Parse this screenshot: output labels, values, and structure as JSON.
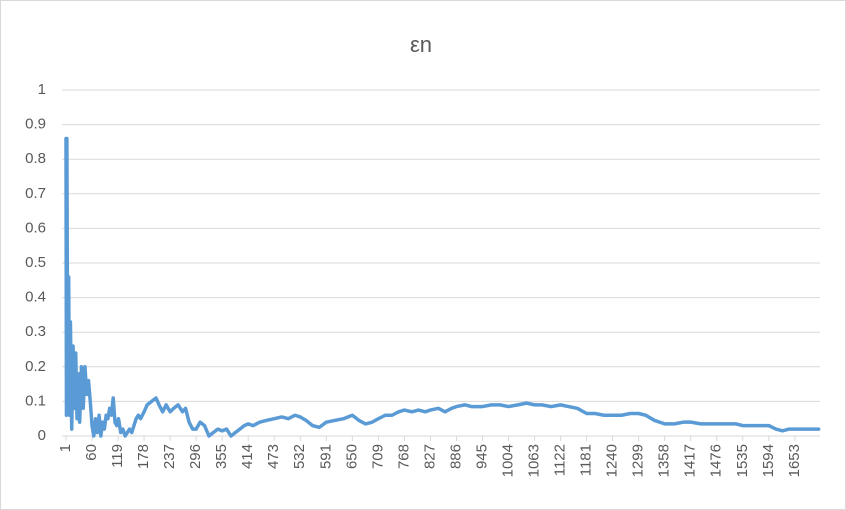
{
  "chart_data": {
    "type": "line",
    "title": "εn",
    "color": "#5b9bd5",
    "grid": true,
    "x": [
      1,
      2,
      3,
      5,
      7,
      9,
      11,
      14,
      17,
      20,
      23,
      26,
      29,
      32,
      36,
      40,
      44,
      48,
      52,
      56,
      60,
      64,
      68,
      72,
      76,
      80,
      84,
      88,
      92,
      96,
      100,
      104,
      108,
      112,
      116,
      120,
      125,
      130,
      135,
      140,
      145,
      150,
      155,
      160,
      165,
      170,
      178,
      185,
      195,
      205,
      212,
      220,
      228,
      237,
      245,
      255,
      265,
      272,
      280,
      288,
      296,
      305,
      315,
      325,
      335,
      345,
      355,
      365,
      375,
      385,
      395,
      405,
      414,
      425,
      440,
      455,
      473,
      490,
      505,
      520,
      532,
      545,
      560,
      575,
      591,
      610,
      630,
      650,
      665,
      680,
      695,
      709,
      725,
      740,
      755,
      768,
      785,
      800,
      815,
      827,
      845,
      860,
      875,
      886,
      905,
      920,
      945,
      965,
      985,
      1004,
      1025,
      1045,
      1063,
      1080,
      1100,
      1122,
      1140,
      1160,
      1181,
      1200,
      1220,
      1240,
      1260,
      1280,
      1299,
      1315,
      1335,
      1358,
      1380,
      1400,
      1417,
      1440,
      1460,
      1476,
      1500,
      1520,
      1535,
      1560,
      1580,
      1594,
      1610,
      1625,
      1640,
      1653,
      1670,
      1690,
      1707
    ],
    "values": [
      0.86,
      0.06,
      0.86,
      0.1,
      0.46,
      0.06,
      0.33,
      0.02,
      0.26,
      0.08,
      0.24,
      0.05,
      0.18,
      0.04,
      0.2,
      0.08,
      0.2,
      0.12,
      0.16,
      0.1,
      0.03,
      0.0,
      0.05,
      0.01,
      0.06,
      0.0,
      0.04,
      0.02,
      0.06,
      0.05,
      0.08,
      0.06,
      0.11,
      0.04,
      0.03,
      0.05,
      0.01,
      0.02,
      0.0,
      0.01,
      0.02,
      0.01,
      0.03,
      0.05,
      0.06,
      0.05,
      0.07,
      0.09,
      0.1,
      0.11,
      0.09,
      0.07,
      0.09,
      0.07,
      0.08,
      0.09,
      0.07,
      0.08,
      0.04,
      0.02,
      0.02,
      0.04,
      0.03,
      0.0,
      0.01,
      0.02,
      0.015,
      0.02,
      0.0,
      0.01,
      0.02,
      0.03,
      0.035,
      0.03,
      0.04,
      0.045,
      0.05,
      0.055,
      0.05,
      0.06,
      0.055,
      0.045,
      0.03,
      0.025,
      0.04,
      0.045,
      0.05,
      0.06,
      0.045,
      0.035,
      0.04,
      0.05,
      0.06,
      0.06,
      0.07,
      0.075,
      0.07,
      0.075,
      0.07,
      0.075,
      0.08,
      0.07,
      0.08,
      0.085,
      0.09,
      0.085,
      0.085,
      0.09,
      0.09,
      0.085,
      0.09,
      0.095,
      0.09,
      0.09,
      0.085,
      0.09,
      0.085,
      0.08,
      0.065,
      0.065,
      0.06,
      0.06,
      0.06,
      0.065,
      0.065,
      0.06,
      0.045,
      0.035,
      0.035,
      0.04,
      0.04,
      0.035,
      0.035,
      0.035,
      0.035,
      0.035,
      0.03,
      0.03,
      0.03,
      0.03,
      0.02,
      0.015,
      0.02,
      0.02,
      0.02,
      0.02,
      0.02
    ],
    "xlim": [
      1,
      1710
    ],
    "xticks": [
      1,
      60,
      119,
      178,
      237,
      296,
      355,
      414,
      473,
      532,
      591,
      650,
      709,
      768,
      827,
      886,
      945,
      1004,
      1063,
      1122,
      1181,
      1240,
      1299,
      1358,
      1417,
      1476,
      1535,
      1594,
      1653
    ],
    "ylim": [
      0,
      1
    ],
    "yticks": [
      0,
      0.1,
      0.2,
      0.3,
      0.4,
      0.5,
      0.6,
      0.7,
      0.8,
      0.9,
      1
    ]
  }
}
